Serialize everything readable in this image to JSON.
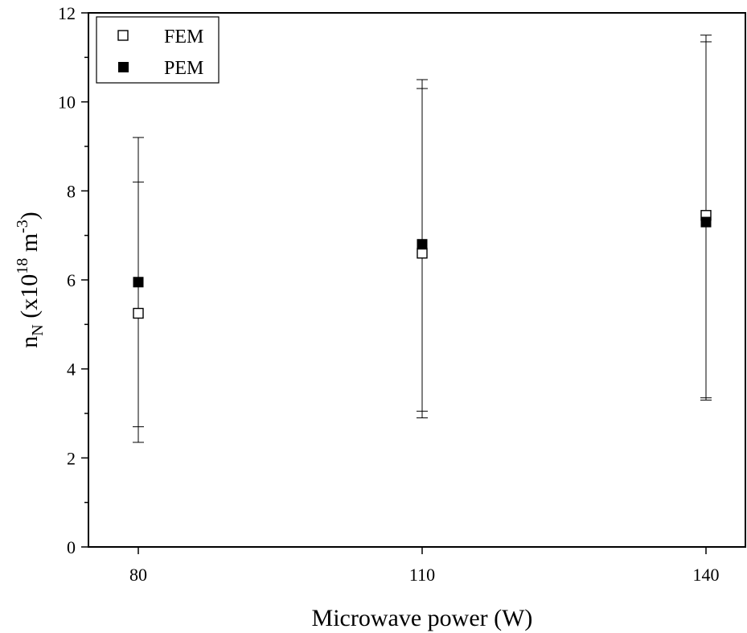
{
  "chart_data": {
    "type": "scatter",
    "x": [
      80,
      110,
      140
    ],
    "xlabel": "Microwave power (W)",
    "ylabel": {
      "base": "n",
      "sub": "N",
      "open": " (x10",
      "sup1": "18",
      "mid": " m",
      "sup2": "-3",
      "close": ")"
    },
    "xticks": [
      "80",
      "110",
      "140"
    ],
    "yticks": [
      "0",
      "2",
      "4",
      "6",
      "8",
      "10",
      "12"
    ],
    "ylim": [
      0,
      12
    ],
    "legend": {
      "position": "top-left"
    },
    "error_bars": true,
    "series": [
      {
        "name": "FEM",
        "marker": "open-square",
        "color": "#000000",
        "values": [
          5.25,
          6.6,
          7.45
        ],
        "err_low": [
          2.7,
          3.05,
          3.35
        ],
        "err_high": [
          8.2,
          10.3,
          11.35
        ]
      },
      {
        "name": "PEM",
        "marker": "filled-square",
        "color": "#000000",
        "values": [
          5.95,
          6.8,
          7.3
        ],
        "err_low": [
          2.35,
          2.9,
          3.3
        ],
        "err_high": [
          9.2,
          10.5,
          11.5
        ]
      }
    ]
  }
}
